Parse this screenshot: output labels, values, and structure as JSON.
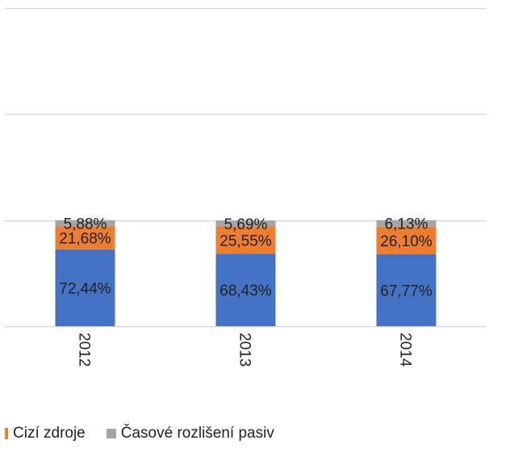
{
  "chart_data": {
    "type": "bar",
    "stacked": true,
    "categories": [
      "2012",
      "2013",
      "2014"
    ],
    "series": [
      {
        "name": "",
        "color": "#4472C4",
        "values": [
          72.44,
          68.43,
          67.77
        ],
        "labels": [
          "72,44%",
          "68,43%",
          "67,77%"
        ]
      },
      {
        "name": "Cizí zdroje",
        "color": "#ED7D31",
        "values": [
          21.68,
          25.55,
          26.1
        ],
        "labels": [
          "21,68%",
          "25,55%",
          "26,10%"
        ]
      },
      {
        "name": "Časové rozlišení pasiv",
        "color": "#A5A5A5",
        "values": [
          5.88,
          5.69,
          6.13
        ],
        "labels": [
          "5,88%",
          "5,69%",
          "6,13%"
        ]
      }
    ],
    "ylim": [
      0,
      300
    ],
    "grid": true,
    "legend_position": "bottom-left"
  },
  "legend": {
    "items": [
      {
        "label": "Cizí zdroje",
        "color": "#ED7D31"
      },
      {
        "label": "Časové rozlišení pasiv",
        "color": "#A5A5A5"
      }
    ]
  }
}
